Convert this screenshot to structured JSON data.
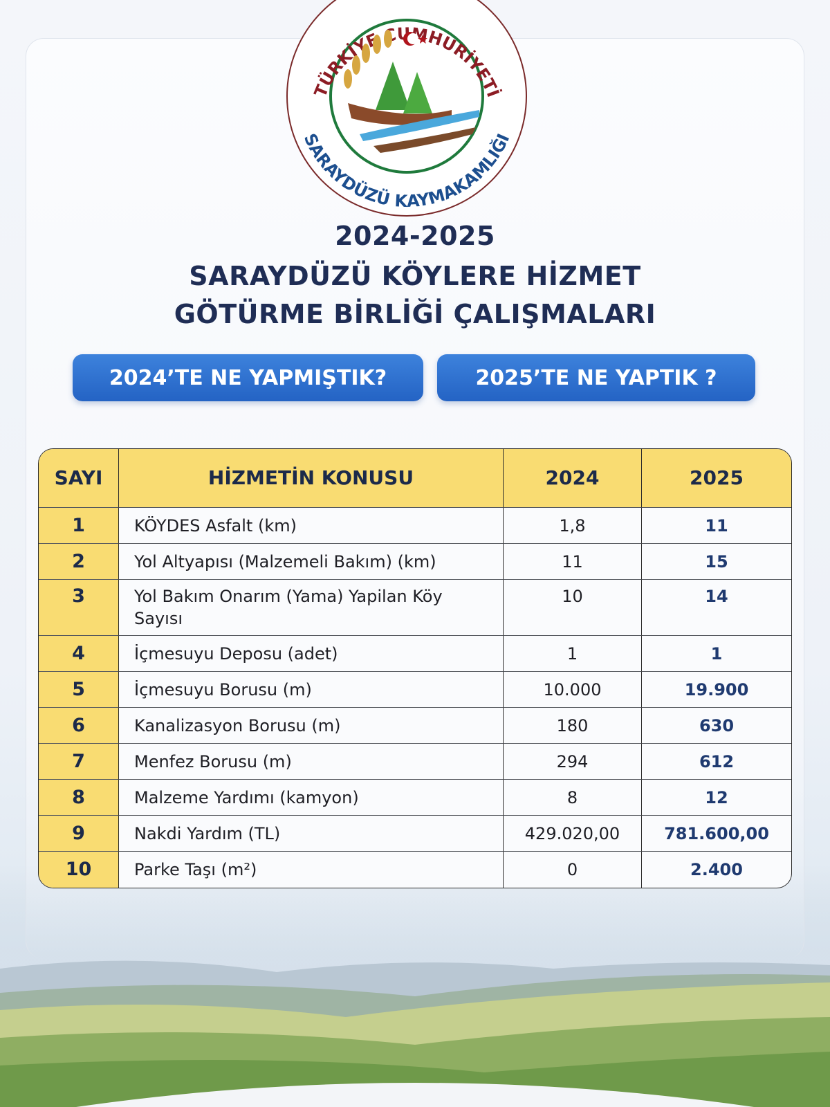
{
  "logo": {
    "top_text": "TÜRKİYE CUMHURİYETİ",
    "bottom_text": "SARAYDÜZÜ KAYMAKAMLIĞI"
  },
  "title": {
    "line1": "2024-2025",
    "line2": "SARAYDÜZÜ KÖYLERE HİZMET",
    "line3": "GÖTÜRME BİRLİĞİ ÇALIŞMALARI"
  },
  "pills": {
    "left": "2024’TE NE YAPMIŞTIK?",
    "right": "2025’TE NE YAPTIK ?"
  },
  "colors": {
    "header_yellow": "#f9dc72",
    "pill_blue": "#2f6fd0",
    "title_navy": "#1f2d55"
  },
  "table": {
    "headers": [
      "SAYI",
      "HİZMETİN KONUSU",
      "2024",
      "2025"
    ],
    "rows": [
      {
        "no": "1",
        "subject": "KÖYDES Asfalt (km)",
        "y2024": "1,8",
        "y2025": "11"
      },
      {
        "no": "2",
        "subject": "Yol Altyapısı (Malzemeli Bakım) (km)",
        "y2024": "11",
        "y2025": "15"
      },
      {
        "no": "3",
        "subject": "Yol Bakım Onarım (Yama) Yapilan Köy Sayısı",
        "y2024": "10",
        "y2025": "14"
      },
      {
        "no": "4",
        "subject": "İçmesuyu Deposu (adet)",
        "y2024": "1",
        "y2025": "1"
      },
      {
        "no": "5",
        "subject": "İçmesuyu Borusu (m)",
        "y2024": "10.000",
        "y2025": "19.900"
      },
      {
        "no": "6",
        "subject": "Kanalizasyon Borusu (m)",
        "y2024": "180",
        "y2025": "630"
      },
      {
        "no": "7",
        "subject": "Menfez Borusu (m)",
        "y2024": "294",
        "y2025": "612"
      },
      {
        "no": "8",
        "subject": "Malzeme Yardımı (kamyon)",
        "y2024": "8",
        "y2025": "12"
      },
      {
        "no": "9",
        "subject": "Nakdi Yardım (TL)",
        "y2024": "429.020,00",
        "y2025": "781.600,00"
      },
      {
        "no": "10",
        "subject": "Parke Taşı (m²)",
        "y2024": "0",
        "y2025": "2.400"
      }
    ]
  }
}
